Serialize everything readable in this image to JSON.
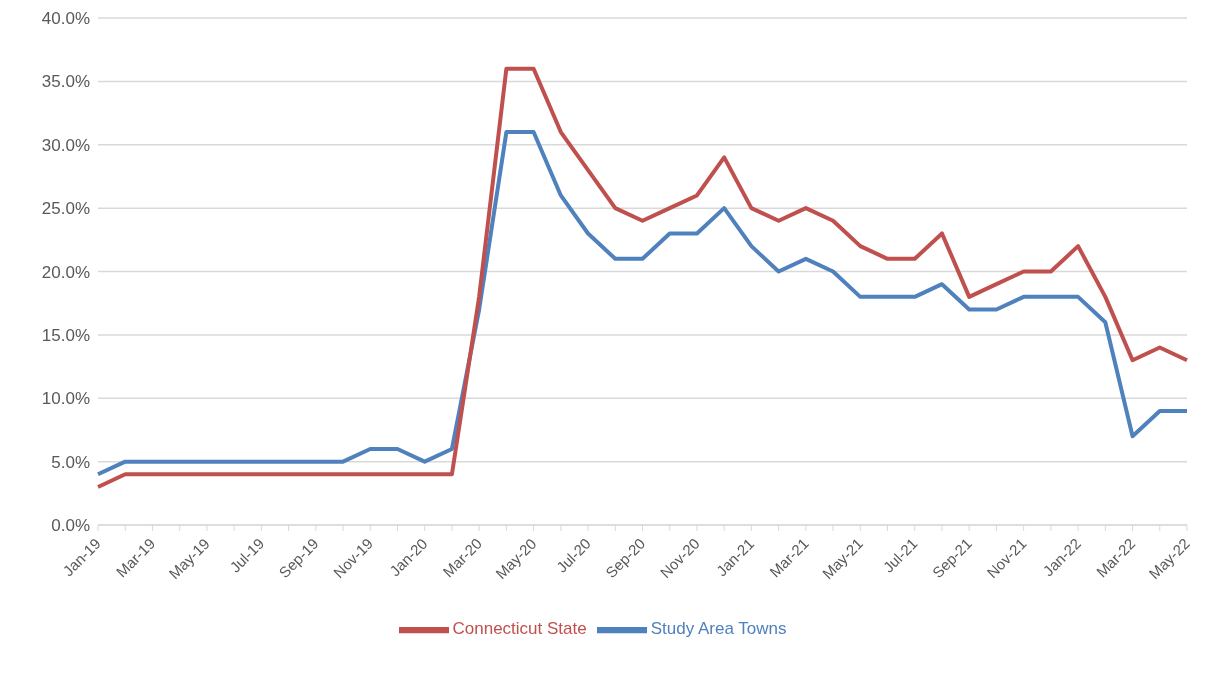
{
  "chart_data": {
    "type": "line",
    "categories": [
      "Jan-19",
      null,
      "Mar-19",
      null,
      "May-19",
      null,
      "Jul-19",
      null,
      "Sep-19",
      null,
      "Nov-19",
      null,
      "Jan-20",
      null,
      "Mar-20",
      null,
      "May-20",
      null,
      "Jul-20",
      null,
      "Sep-20",
      null,
      "Nov-20",
      null,
      "Jan-21",
      null,
      "Mar-21",
      null,
      "May-21",
      null,
      "Jul-21",
      null,
      "Sep-21",
      null,
      "Nov-21",
      null,
      "Jan-22",
      null,
      "Mar-22",
      null,
      "May-22"
    ],
    "series": [
      {
        "name": "Study Area Towns",
        "color": "#4f81bd",
        "values": [
          4,
          5,
          5,
          5,
          5,
          5,
          5,
          5,
          5,
          5,
          6,
          6,
          5,
          6,
          17,
          31,
          31,
          26,
          23,
          21,
          21,
          23,
          23,
          25,
          22,
          20,
          21,
          20,
          18,
          18,
          18,
          19,
          17,
          17,
          18,
          18,
          18,
          16,
          7,
          9,
          9
        ]
      },
      {
        "name": "Connecticut State",
        "color": "#c0504d",
        "values": [
          3,
          4,
          4,
          4,
          4,
          4,
          4,
          4,
          4,
          4,
          4,
          4,
          4,
          4,
          18,
          36,
          36,
          31,
          28,
          25,
          24,
          25,
          26,
          29,
          25,
          24,
          25,
          24,
          22,
          21,
          21,
          23,
          18,
          19,
          20,
          20,
          22,
          18,
          13,
          14,
          13
        ]
      }
    ],
    "ylim": [
      0,
      40
    ],
    "yticks": [
      {
        "value": 0,
        "label": "0.0%"
      },
      {
        "value": 5,
        "label": "5.0%"
      },
      {
        "value": 10,
        "label": "10.0%"
      },
      {
        "value": 15,
        "label": "15.0%"
      },
      {
        "value": 20,
        "label": "20.0%"
      },
      {
        "value": 25,
        "label": "25.0%"
      },
      {
        "value": 30,
        "label": "30.0%"
      },
      {
        "value": 35,
        "label": "35.0%"
      },
      {
        "value": 40,
        "label": "40.0%"
      }
    ],
    "grid": "y",
    "legend": "bottom",
    "marker": "none",
    "line_style": "solid"
  }
}
